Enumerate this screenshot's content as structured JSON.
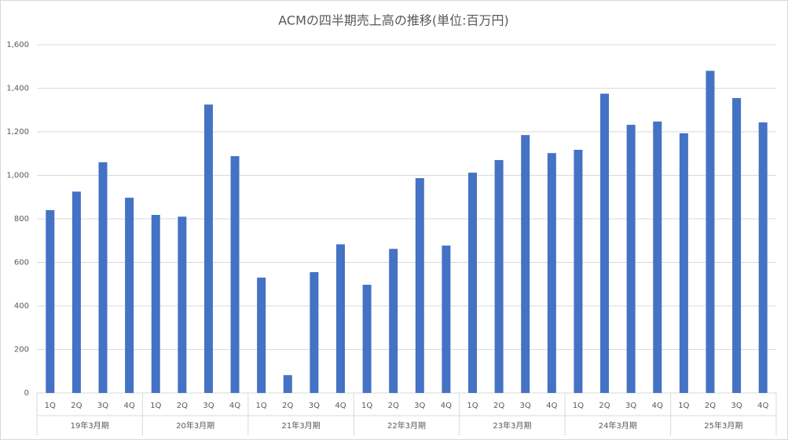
{
  "chart_data": {
    "type": "bar",
    "title": "ACMの四半期売上高の推移(単位:百万円)",
    "categories": [
      "1Q",
      "2Q",
      "3Q",
      "4Q",
      "1Q",
      "2Q",
      "3Q",
      "4Q",
      "1Q",
      "2Q",
      "3Q",
      "4Q",
      "1Q",
      "2Q",
      "3Q",
      "4Q",
      "1Q",
      "2Q",
      "3Q",
      "4Q",
      "1Q",
      "2Q",
      "3Q",
      "4Q",
      "1Q",
      "2Q",
      "3Q",
      "4Q"
    ],
    "groups": [
      "19年3月期",
      "20年3月期",
      "21年3月期",
      "22年3月期",
      "23年3月期",
      "24年3月期",
      "25年3月期"
    ],
    "values": [
      840,
      925,
      1060,
      897,
      818,
      810,
      1325,
      1088,
      530,
      82,
      555,
      683,
      497,
      662,
      987,
      677,
      1012,
      1070,
      1185,
      1102,
      1117,
      1375,
      1232,
      1247,
      1193,
      1480,
      1355,
      1243
    ],
    "color": "#4472c4",
    "ylim": [
      0,
      1600
    ],
    "yticks": [
      0,
      200,
      400,
      600,
      800,
      {
        "value": 1000,
        "label": "1,000"
      },
      {
        "value": 1200,
        "label": "1,200"
      },
      {
        "value": 1400,
        "label": "1,400"
      },
      {
        "value": 1600,
        "label": "1,600"
      }
    ],
    "grid": true
  }
}
